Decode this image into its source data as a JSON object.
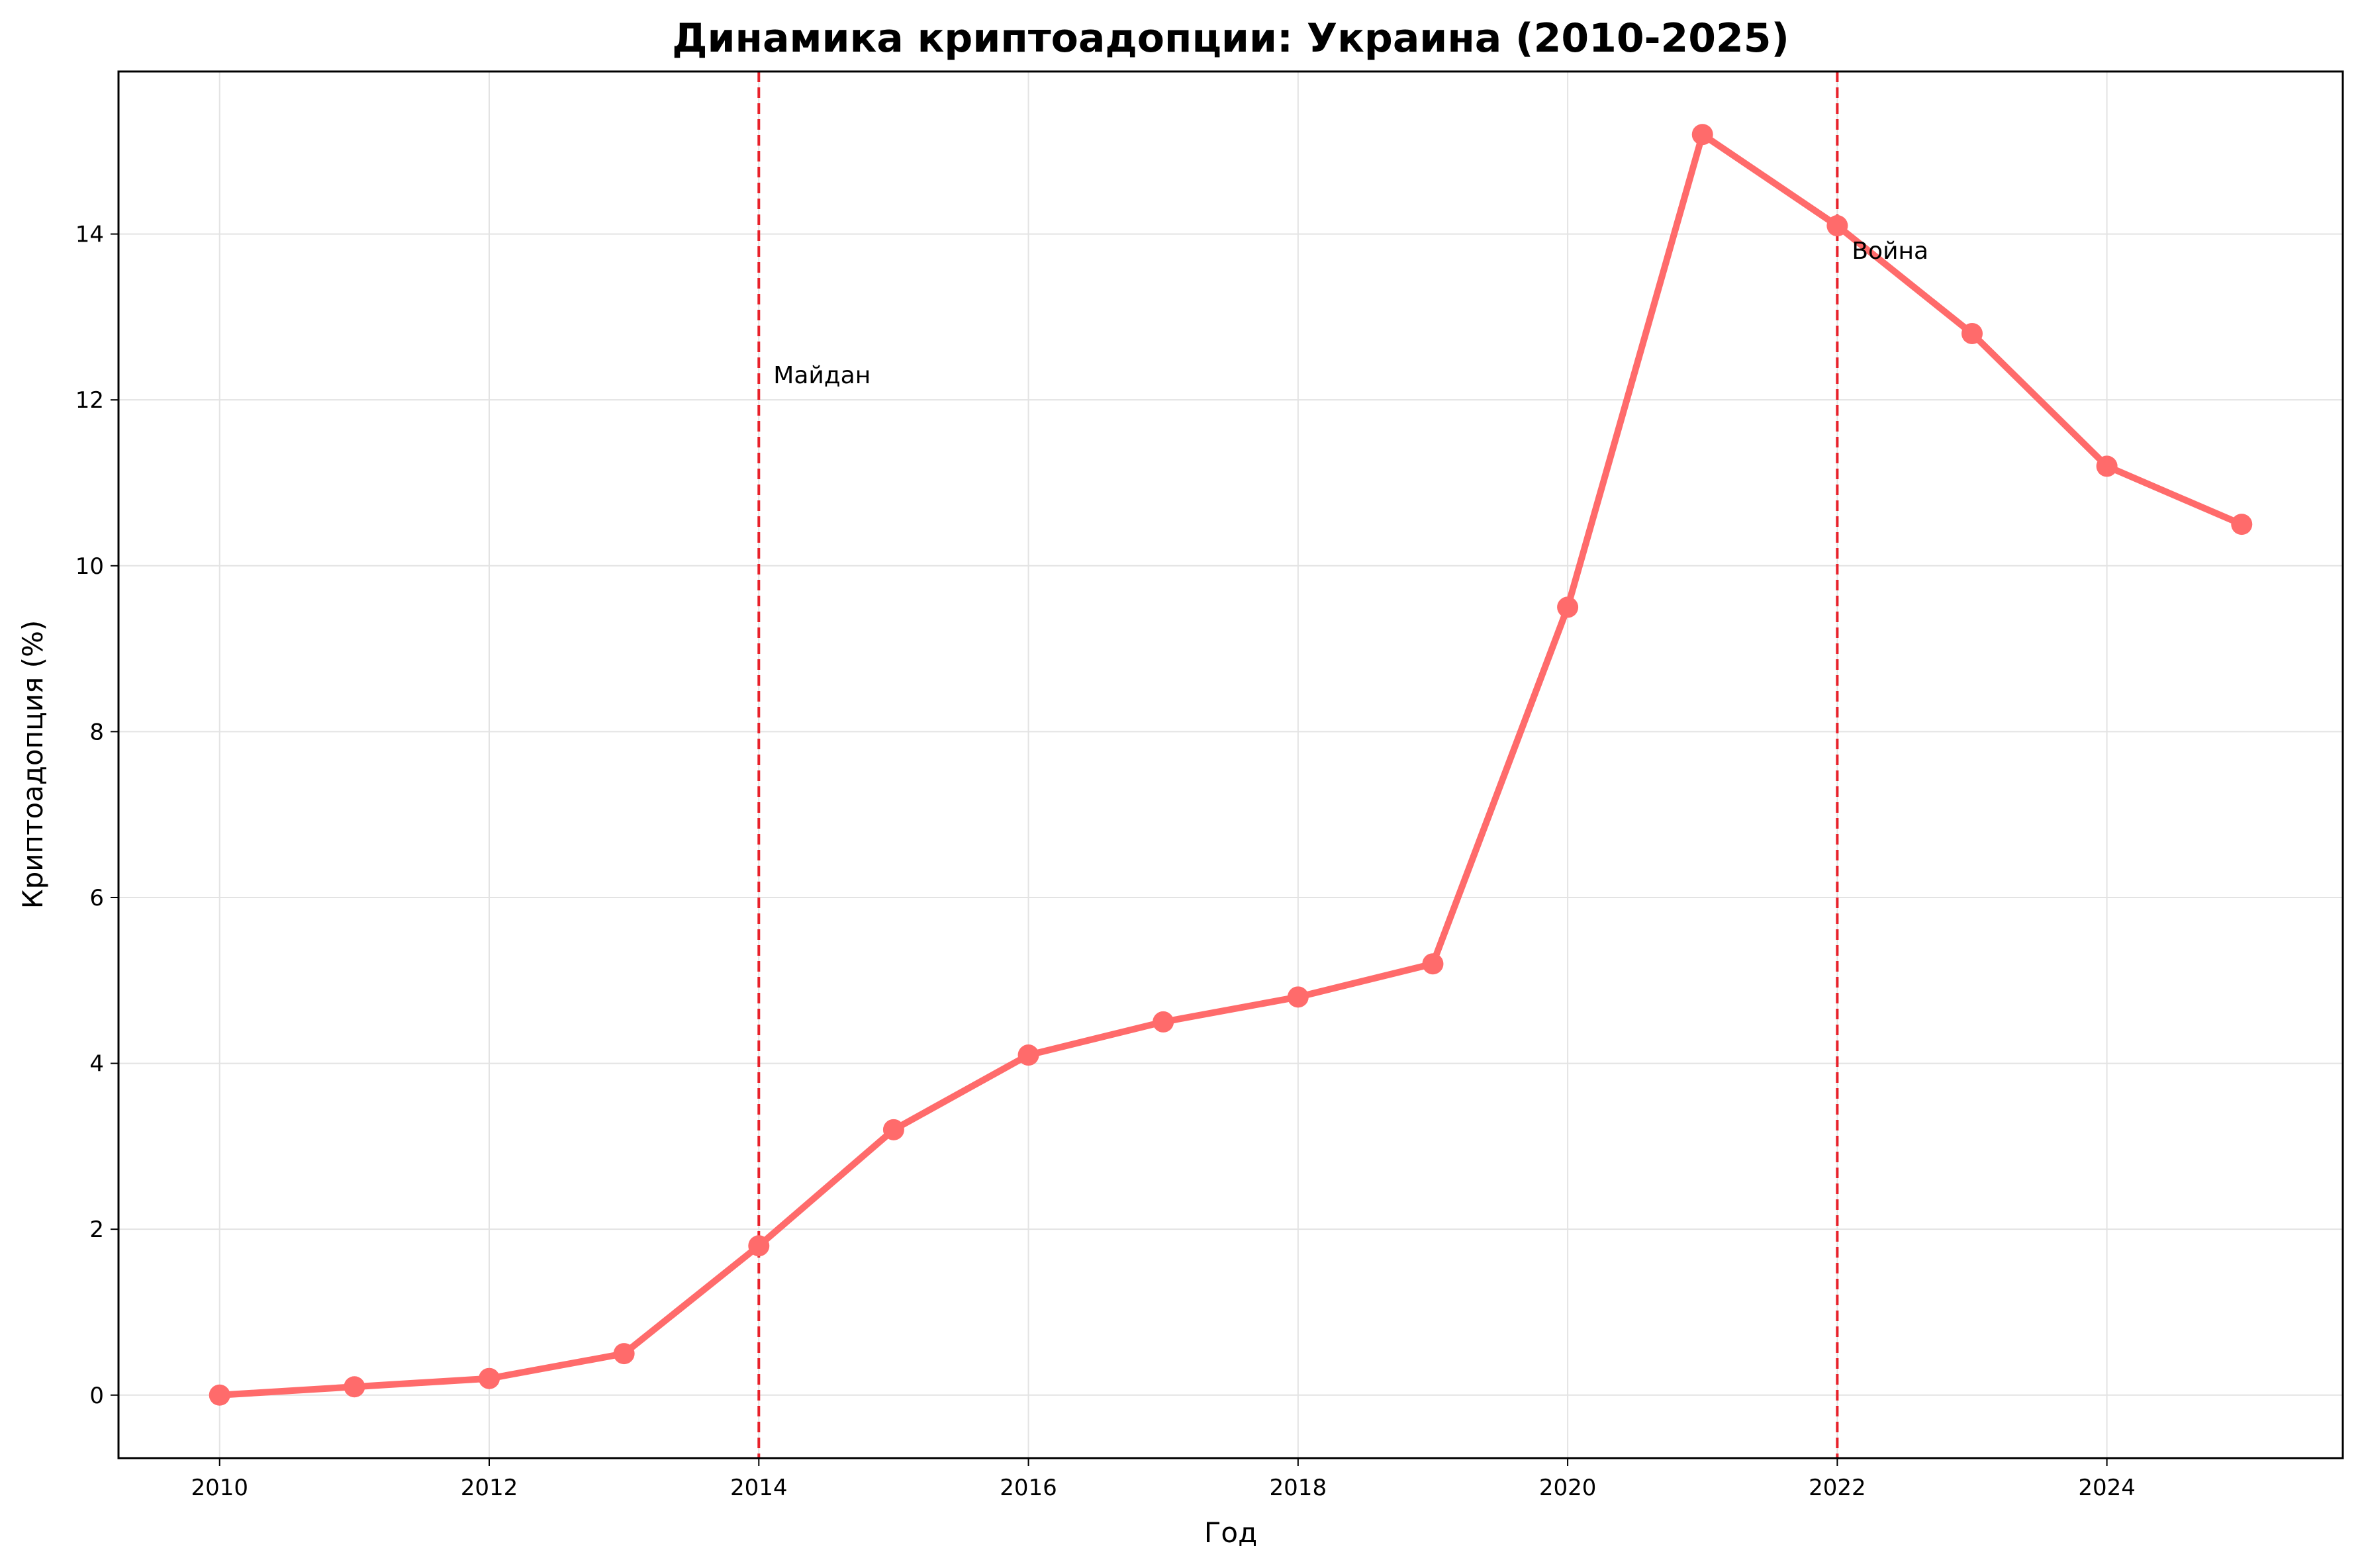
{
  "chart_data": {
    "type": "line",
    "title": "Динамика криптоадопции: Украина (2010-2025)",
    "xlabel": "Год",
    "ylabel": "Криптоадопция (%)",
    "xlim": [
      2009.25,
      2025.75
    ],
    "ylim": [
      -0.76,
      15.96
    ],
    "x_ticks": [
      2010,
      2012,
      2014,
      2016,
      2018,
      2020,
      2022,
      2024
    ],
    "y_ticks": [
      0,
      2,
      4,
      6,
      8,
      10,
      12,
      14
    ],
    "grid": true,
    "series": [
      {
        "color": "#ff6b6b",
        "x": [
          2010,
          2011,
          2012,
          2013,
          2014,
          2015,
          2016,
          2017,
          2018,
          2019,
          2020,
          2021,
          2022,
          2023,
          2024,
          2025
        ],
        "y": [
          0.0,
          0.1,
          0.2,
          0.5,
          1.8,
          3.2,
          4.1,
          4.5,
          4.8,
          5.2,
          9.5,
          15.2,
          14.1,
          12.8,
          11.2,
          10.5
        ]
      }
    ],
    "reference_lines": [
      {
        "x": 2014,
        "label": "Майдан",
        "label_y": 12.2,
        "color": "#e8212a"
      },
      {
        "x": 2022,
        "label": "Война",
        "label_y": 13.7,
        "color": "#e8212a"
      }
    ]
  }
}
